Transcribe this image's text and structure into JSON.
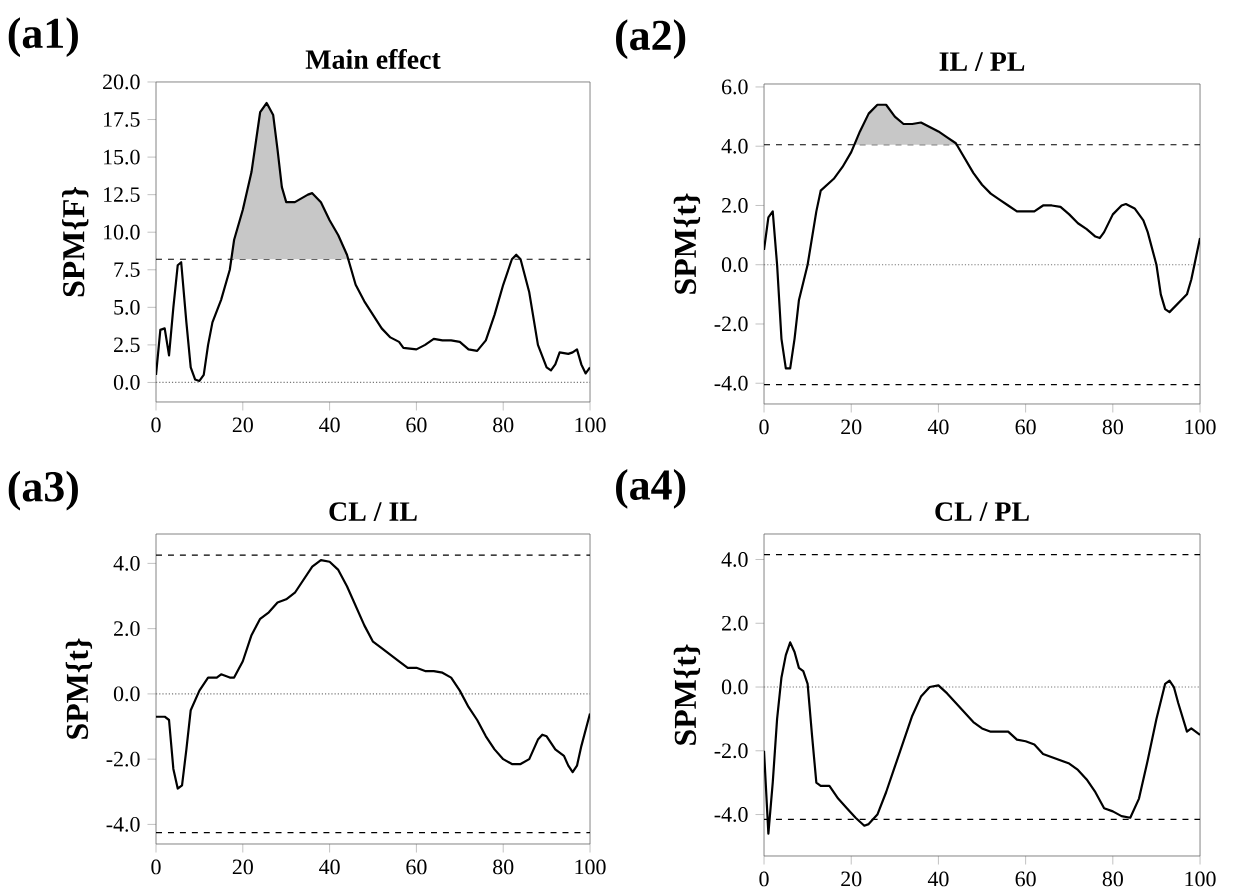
{
  "chart_data": [
    {
      "type": "line",
      "title": "Main effect",
      "ylabel": "SPM{F}",
      "annotations": [
        "(a1)"
      ],
      "xlim": [
        0,
        100
      ],
      "ylim": [
        -1.3,
        20
      ],
      "xticks": [
        0,
        20,
        40,
        60,
        80,
        100
      ],
      "yticks": [
        {
          "value": 0,
          "label": "0.0"
        },
        {
          "value": 2.5,
          "label": "2.5"
        },
        {
          "value": 5,
          "label": "5.0"
        },
        {
          "value": 7.5,
          "label": "7.5"
        },
        {
          "value": 10,
          "label": "10.0"
        },
        {
          "value": 12.5,
          "label": "12.5"
        },
        {
          "value": 15,
          "label": "15.0"
        },
        {
          "value": 17.5,
          "label": "17.5"
        },
        {
          "value": 20,
          "label": "20.0"
        }
      ],
      "ref_lines": [
        {
          "axis": "y",
          "value": 8.2,
          "color": "#000000",
          "line_style": "dashed"
        },
        {
          "axis": "y",
          "value": 0,
          "color": "#777777",
          "line_style": "dotted"
        }
      ],
      "series": [
        {
          "color": "#000000",
          "x": [
            0,
            1,
            2,
            3,
            4,
            5,
            5.8,
            7,
            8,
            9,
            10,
            11,
            12,
            13,
            15,
            17,
            18,
            20,
            22,
            24,
            25.5,
            27,
            28,
            29,
            30,
            32,
            35,
            36,
            38,
            40,
            42,
            44,
            46,
            48,
            50,
            52,
            54,
            56,
            57,
            60,
            62,
            64,
            66,
            68,
            70,
            72,
            74,
            76,
            78,
            80,
            82,
            83,
            84,
            86,
            88,
            90,
            91,
            92,
            93,
            95,
            96,
            97,
            98,
            99,
            100
          ],
          "values": [
            0.5,
            3.5,
            3.6,
            1.8,
            5,
            7.8,
            8.0,
            4,
            1,
            0.2,
            0.1,
            0.5,
            2.5,
            4,
            5.5,
            7.5,
            9.5,
            11.5,
            14,
            18,
            18.6,
            17.8,
            15.5,
            13,
            12,
            12,
            12.5,
            12.6,
            12,
            10.8,
            9.8,
            8.5,
            6.5,
            5.4,
            4.5,
            3.6,
            3.0,
            2.7,
            2.3,
            2.2,
            2.5,
            2.9,
            2.8,
            2.8,
            2.7,
            2.2,
            2.1,
            2.8,
            4.5,
            6.5,
            8.2,
            8.5,
            8.2,
            6,
            2.5,
            1,
            0.8,
            1.2,
            2.0,
            1.9,
            2.0,
            2.2,
            1.2,
            0.6,
            1.0
          ]
        }
      ]
    },
    {
      "type": "line",
      "title": "IL / PL",
      "ylabel": "SPM{t}",
      "annotations": [
        "(a2)"
      ],
      "xlim": [
        0,
        100
      ],
      "ylim": [
        -4.7,
        6.1
      ],
      "xticks": [
        0,
        20,
        40,
        60,
        80,
        100
      ],
      "yticks": [
        {
          "value": -4,
          "label": "-4.0"
        },
        {
          "value": -2,
          "label": "-2.0"
        },
        {
          "value": 0,
          "label": "0.0"
        },
        {
          "value": 2,
          "label": "2.0"
        },
        {
          "value": 4,
          "label": "4.0"
        },
        {
          "value": 6,
          "label": "6.0"
        }
      ],
      "ref_lines": [
        {
          "axis": "y",
          "value": 4.05,
          "color": "#000000",
          "line_style": "dashed"
        },
        {
          "axis": "y",
          "value": -4.05,
          "color": "#000000",
          "line_style": "dashed"
        },
        {
          "axis": "y",
          "value": 0,
          "color": "#777777",
          "line_style": "dotted"
        }
      ],
      "series": [
        {
          "color": "#000000",
          "x": [
            0,
            1,
            2,
            3,
            4,
            5,
            6,
            7,
            8,
            10,
            12,
            13,
            16,
            18,
            20,
            22,
            24,
            26,
            28,
            30,
            32,
            34,
            36,
            38,
            40,
            42,
            44,
            46,
            48,
            50,
            52,
            54,
            56,
            58,
            60,
            62,
            64,
            66,
            68,
            70,
            72,
            74,
            76,
            77,
            78,
            80,
            82,
            83,
            85,
            87,
            88,
            90,
            91,
            92,
            93,
            95,
            97,
            98,
            100
          ],
          "values": [
            0.5,
            1.6,
            1.8,
            0,
            -2.5,
            -3.5,
            -3.5,
            -2.5,
            -1.2,
            0,
            1.8,
            2.5,
            2.9,
            3.3,
            3.8,
            4.5,
            5.1,
            5.4,
            5.4,
            5.0,
            4.75,
            4.75,
            4.8,
            4.65,
            4.5,
            4.3,
            4.1,
            3.6,
            3.1,
            2.7,
            2.4,
            2.2,
            2.0,
            1.8,
            1.8,
            1.8,
            2.0,
            2.0,
            1.95,
            1.7,
            1.4,
            1.2,
            0.95,
            0.9,
            1.1,
            1.7,
            2.0,
            2.05,
            1.9,
            1.5,
            1.1,
            0,
            -1,
            -1.5,
            -1.6,
            -1.3,
            -1.0,
            -0.5,
            0.9
          ]
        }
      ]
    },
    {
      "type": "line",
      "title": "CL / IL",
      "ylabel": "SPM{t}",
      "annotations": [
        "(a3)"
      ],
      "xlim": [
        0,
        100
      ],
      "ylim": [
        -4.6,
        4.9
      ],
      "xticks": [
        0,
        20,
        40,
        60,
        80,
        100
      ],
      "yticks": [
        {
          "value": -4,
          "label": "-4.0"
        },
        {
          "value": -2,
          "label": "-2.0"
        },
        {
          "value": 0,
          "label": "0.0"
        },
        {
          "value": 2,
          "label": "2.0"
        },
        {
          "value": 4,
          "label": "4.0"
        }
      ],
      "ref_lines": [
        {
          "axis": "y",
          "value": 4.25,
          "color": "#000000",
          "line_style": "dashed"
        },
        {
          "axis": "y",
          "value": -4.25,
          "color": "#000000",
          "line_style": "dashed"
        },
        {
          "axis": "y",
          "value": 0,
          "color": "#777777",
          "line_style": "dotted"
        }
      ],
      "series": [
        {
          "color": "#000000",
          "x": [
            0,
            2,
            3,
            4,
            5,
            6,
            7,
            8,
            10,
            12,
            14,
            15,
            17,
            18,
            20,
            22,
            24,
            26,
            28,
            30,
            32,
            34,
            36,
            38,
            40,
            42,
            44,
            46,
            48,
            50,
            52,
            54,
            56,
            58,
            60,
            62,
            64,
            66,
            68,
            70,
            72,
            74,
            76,
            78,
            80,
            82,
            84,
            86,
            88,
            89,
            90,
            92,
            94,
            95,
            96,
            97,
            98,
            100
          ],
          "values": [
            -0.7,
            -0.7,
            -0.8,
            -2.3,
            -2.9,
            -2.8,
            -1.7,
            -0.5,
            0.1,
            0.5,
            0.5,
            0.6,
            0.5,
            0.5,
            1.0,
            1.8,
            2.3,
            2.5,
            2.8,
            2.9,
            3.1,
            3.5,
            3.9,
            4.1,
            4.05,
            3.8,
            3.3,
            2.7,
            2.1,
            1.6,
            1.4,
            1.2,
            1.0,
            0.8,
            0.8,
            0.7,
            0.7,
            0.65,
            0.5,
            0.1,
            -0.4,
            -0.8,
            -1.3,
            -1.7,
            -2.0,
            -2.15,
            -2.15,
            -2.0,
            -1.4,
            -1.25,
            -1.3,
            -1.7,
            -1.9,
            -2.2,
            -2.4,
            -2.2,
            -1.6,
            -0.6
          ]
        }
      ]
    },
    {
      "type": "line",
      "title": "CL / PL",
      "ylabel": "SPM{t}",
      "annotations": [
        "(a4)"
      ],
      "xlim": [
        0,
        100
      ],
      "ylim": [
        -5.3,
        4.8
      ],
      "xticks": [
        0,
        20,
        40,
        60,
        80,
        100
      ],
      "yticks": [
        {
          "value": -4,
          "label": "-4.0"
        },
        {
          "value": -2,
          "label": "-2.0"
        },
        {
          "value": 0,
          "label": "0.0"
        },
        {
          "value": 2,
          "label": "2.0"
        },
        {
          "value": 4,
          "label": "4.0"
        }
      ],
      "ref_lines": [
        {
          "axis": "y",
          "value": 4.15,
          "color": "#000000",
          "line_style": "dashed"
        },
        {
          "axis": "y",
          "value": -4.15,
          "color": "#000000",
          "line_style": "dashed"
        },
        {
          "axis": "y",
          "value": 0,
          "color": "#777777",
          "line_style": "dotted"
        }
      ],
      "series": [
        {
          "color": "#000000",
          "x": [
            0,
            1,
            2,
            3,
            4,
            5,
            6,
            7,
            8,
            9,
            10,
            11,
            12,
            13,
            15,
            17,
            19,
            21,
            23,
            24,
            26,
            28,
            30,
            32,
            34,
            36,
            38,
            40,
            42,
            44,
            46,
            48,
            50,
            52,
            54,
            56,
            58,
            60,
            62,
            64,
            66,
            68,
            70,
            72,
            74,
            76,
            78,
            80,
            82,
            84,
            86,
            88,
            90,
            92,
            93,
            94,
            95,
            97,
            98,
            100
          ],
          "values": [
            -2.0,
            -4.6,
            -3.0,
            -1.0,
            0.3,
            1.0,
            1.4,
            1.1,
            0.6,
            0.5,
            0.1,
            -1.5,
            -3.0,
            -3.1,
            -3.1,
            -3.5,
            -3.8,
            -4.1,
            -4.35,
            -4.3,
            -4.0,
            -3.3,
            -2.5,
            -1.7,
            -0.9,
            -0.3,
            0,
            0.05,
            -0.2,
            -0.5,
            -0.8,
            -1.1,
            -1.3,
            -1.4,
            -1.4,
            -1.4,
            -1.65,
            -1.7,
            -1.8,
            -2.1,
            -2.2,
            -2.3,
            -2.4,
            -2.6,
            -2.9,
            -3.3,
            -3.8,
            -3.9,
            -4.05,
            -4.1,
            -3.5,
            -2.3,
            -1.0,
            0.1,
            0.2,
            0,
            -0.5,
            -1.4,
            -1.3,
            -1.5
          ]
        }
      ]
    }
  ]
}
